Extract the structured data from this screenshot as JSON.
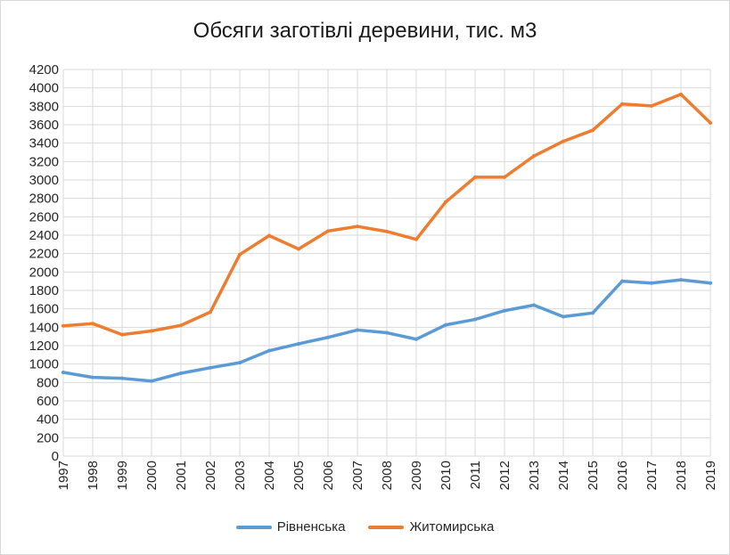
{
  "chart_data": {
    "type": "line",
    "title": "Обсяги заготівлі деревини, тис. м3",
    "xlabel": "",
    "ylabel": "",
    "x": [
      "1997",
      "1998",
      "1999",
      "2000",
      "2001",
      "2002",
      "2003",
      "2004",
      "2005",
      "2006",
      "2007",
      "2008",
      "2009",
      "2010",
      "2011",
      "2012",
      "2013",
      "2014",
      "2015",
      "2016",
      "2017",
      "2018",
      "2019"
    ],
    "y_ticks": [
      "0",
      "200",
      "400",
      "600",
      "800",
      "1000",
      "1200",
      "1400",
      "1600",
      "1800",
      "2000",
      "2200",
      "2400",
      "2600",
      "2800",
      "3000",
      "3200",
      "3400",
      "3600",
      "3800",
      "4000",
      "4200"
    ],
    "ylim": [
      0,
      4200
    ],
    "grid": true,
    "legend_position": "bottom",
    "series": [
      {
        "name": "Рівненська",
        "color": "#5b9bd5",
        "values": [
          910,
          855,
          845,
          815,
          900,
          960,
          1015,
          1145,
          1220,
          1290,
          1370,
          1340,
          1270,
          1425,
          1485,
          1580,
          1640,
          1515,
          1555,
          1900,
          1880,
          1915,
          1880
        ]
      },
      {
        "name": "Житомирська",
        "color": "#ed7d31",
        "values": [
          1415,
          1440,
          1320,
          1360,
          1420,
          1565,
          2190,
          2395,
          2250,
          2445,
          2495,
          2440,
          2355,
          2760,
          3030,
          3030,
          3260,
          3420,
          3540,
          3825,
          3805,
          3930,
          3620
        ]
      }
    ]
  }
}
